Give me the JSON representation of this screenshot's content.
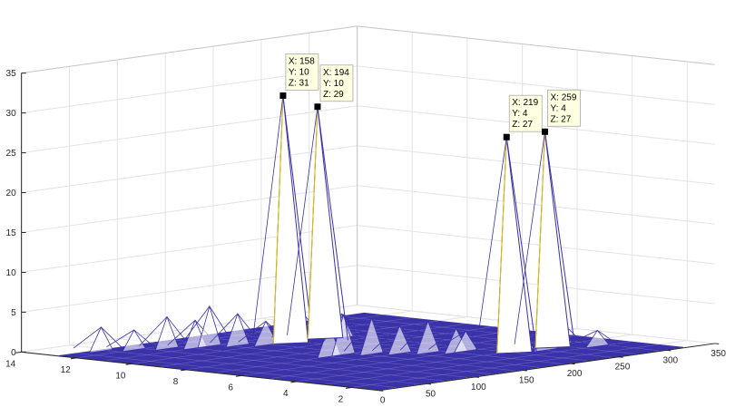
{
  "chart_data": {
    "type": "mesh3d",
    "title": "",
    "xlabel": "",
    "ylabel": "",
    "zlabel": "",
    "xlim": [
      0,
      350
    ],
    "ylim": [
      1,
      14
    ],
    "zlim": [
      0,
      35
    ],
    "x_ticks": [
      0,
      50,
      100,
      150,
      200,
      250,
      300,
      350
    ],
    "y_ticks": [
      2,
      4,
      6,
      8,
      10,
      12,
      14
    ],
    "z_ticks": [
      0,
      5,
      10,
      15,
      20,
      25,
      30,
      35
    ],
    "grid": true,
    "colors": {
      "mesh": "#3a32a8",
      "mesh_light": "#8a84cc",
      "highlight_edge": "#e6c200",
      "background": "#f0f0f0"
    },
    "peaks": [
      {
        "x": 158,
        "y": 10,
        "z": 31
      },
      {
        "x": 194,
        "y": 10,
        "z": 29
      },
      {
        "x": 219,
        "y": 4,
        "z": 27
      },
      {
        "x": 259,
        "y": 4,
        "z": 27
      }
    ],
    "datatips": [
      {
        "x_text": "X: 158",
        "y_text": "Y: 10",
        "z_text": "Z: 31"
      },
      {
        "x_text": "X: 194",
        "y_text": "Y: 10",
        "z_text": "Z: 29"
      },
      {
        "x_text": "X: 219",
        "y_text": "Y: 4",
        "z_text": "Z: 27"
      },
      {
        "x_text": "X: 259",
        "y_text": "Y: 4",
        "z_text": "Z: 27"
      }
    ],
    "ridge_points": [
      {
        "x": 40,
        "y": 12.5,
        "z": 3
      },
      {
        "x": 60,
        "y": 12,
        "z": 2.5
      },
      {
        "x": 80,
        "y": 11.5,
        "z": 4
      },
      {
        "x": 95,
        "y": 11,
        "z": 3.5
      },
      {
        "x": 110,
        "y": 11,
        "z": 5
      },
      {
        "x": 125,
        "y": 10.5,
        "z": 4
      },
      {
        "x": 140,
        "y": 10,
        "z": 3
      },
      {
        "x": 175,
        "y": 10,
        "z": 4
      },
      {
        "x": 205,
        "y": 9.5,
        "z": 3
      },
      {
        "x": 120,
        "y": 7,
        "z": 4
      },
      {
        "x": 135,
        "y": 7,
        "z": 5
      },
      {
        "x": 150,
        "y": 6.5,
        "z": 4.5
      },
      {
        "x": 165,
        "y": 6,
        "z": 3.5
      },
      {
        "x": 180,
        "y": 5.5,
        "z": 4
      },
      {
        "x": 195,
        "y": 5,
        "z": 3
      },
      {
        "x": 205,
        "y": 5,
        "z": 2.5
      },
      {
        "x": 235,
        "y": 4,
        "z": 3
      },
      {
        "x": 245,
        "y": 3.5,
        "z": 2.5
      },
      {
        "x": 275,
        "y": 4,
        "z": 3
      },
      {
        "x": 285,
        "y": 3,
        "z": 2
      }
    ]
  }
}
